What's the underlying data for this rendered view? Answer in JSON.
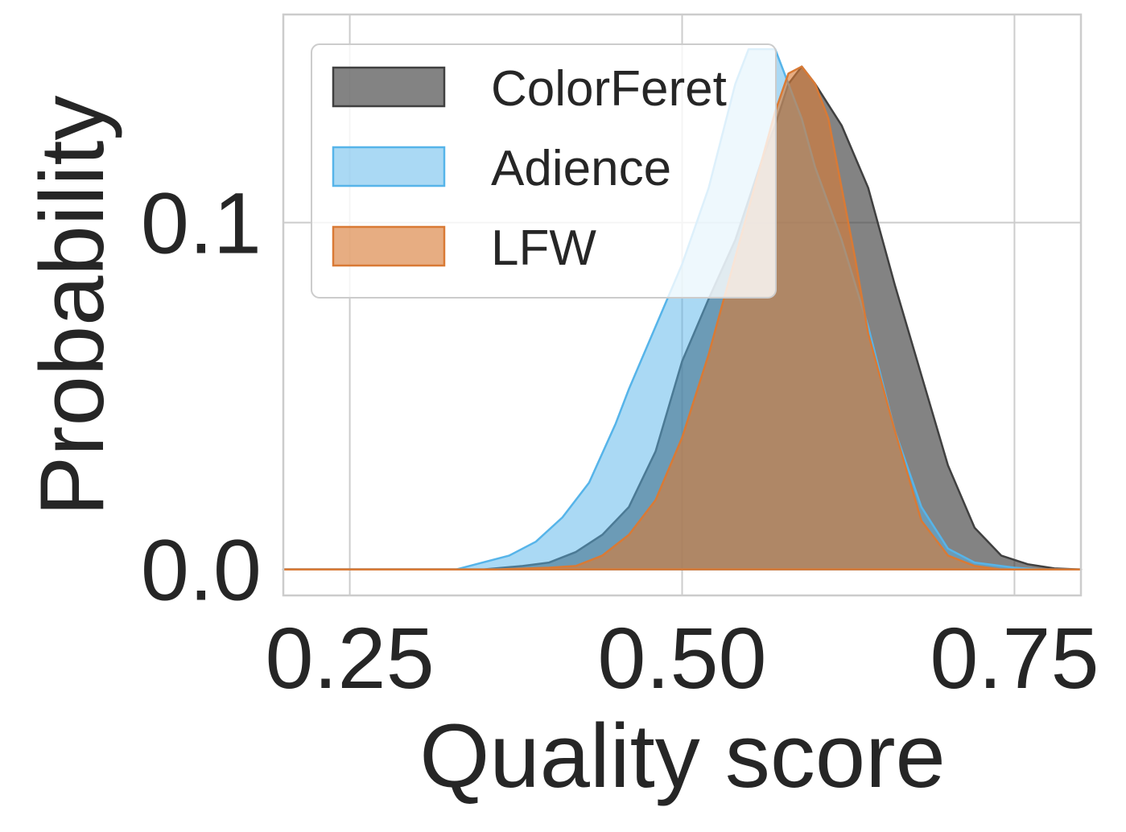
{
  "chart_data": {
    "type": "area",
    "title": "",
    "xlabel": "Quality score",
    "ylabel": "Probability",
    "xlim": [
      0.2,
      0.8
    ],
    "ylim": [
      -0.0075,
      0.16
    ],
    "x_ticks": [
      0.25,
      0.5,
      0.75
    ],
    "x_tick_labels": [
      "0.25",
      "0.50",
      "0.75"
    ],
    "y_ticks": [
      0.0,
      0.1
    ],
    "y_tick_labels": [
      "0.0",
      "0.1"
    ],
    "grid": true,
    "legend_position": "top-left",
    "series": [
      {
        "name": "ColorFeret",
        "color": "#404040",
        "fill_opacity": 0.65,
        "points": [
          [
            0.2,
            0
          ],
          [
            0.35,
            0
          ],
          [
            0.38,
            0.001
          ],
          [
            0.4,
            0.002
          ],
          [
            0.42,
            0.005
          ],
          [
            0.44,
            0.01
          ],
          [
            0.46,
            0.018
          ],
          [
            0.48,
            0.034
          ],
          [
            0.5,
            0.06
          ],
          [
            0.52,
            0.078
          ],
          [
            0.54,
            0.095
          ],
          [
            0.56,
            0.118
          ],
          [
            0.57,
            0.128
          ],
          [
            0.58,
            0.14
          ],
          [
            0.59,
            0.145
          ],
          [
            0.6,
            0.14
          ],
          [
            0.62,
            0.128
          ],
          [
            0.64,
            0.11
          ],
          [
            0.66,
            0.082
          ],
          [
            0.68,
            0.056
          ],
          [
            0.7,
            0.03
          ],
          [
            0.72,
            0.012
          ],
          [
            0.74,
            0.004
          ],
          [
            0.76,
            0.0015
          ],
          [
            0.78,
            0.0003
          ],
          [
            0.8,
            0
          ]
        ]
      },
      {
        "name": "Adience",
        "color": "#56b4e9",
        "fill_opacity": 0.5,
        "points": [
          [
            0.2,
            0
          ],
          [
            0.33,
            0
          ],
          [
            0.35,
            0.002
          ],
          [
            0.37,
            0.004
          ],
          [
            0.39,
            0.008
          ],
          [
            0.41,
            0.015
          ],
          [
            0.43,
            0.025
          ],
          [
            0.45,
            0.042
          ],
          [
            0.46,
            0.052
          ],
          [
            0.48,
            0.07
          ],
          [
            0.5,
            0.088
          ],
          [
            0.52,
            0.11
          ],
          [
            0.53,
            0.125
          ],
          [
            0.54,
            0.14
          ],
          [
            0.55,
            0.15
          ],
          [
            0.56,
            0.15
          ],
          [
            0.57,
            0.15
          ],
          [
            0.58,
            0.14
          ],
          [
            0.59,
            0.13
          ],
          [
            0.6,
            0.116
          ],
          [
            0.62,
            0.095
          ],
          [
            0.64,
            0.07
          ],
          [
            0.66,
            0.04
          ],
          [
            0.68,
            0.018
          ],
          [
            0.7,
            0.006
          ],
          [
            0.72,
            0.002
          ],
          [
            0.75,
            0.0005
          ],
          [
            0.77,
            0
          ],
          [
            0.8,
            0
          ]
        ]
      },
      {
        "name": "LFW",
        "color": "#d97a35",
        "fill_opacity": 0.62,
        "points": [
          [
            0.2,
            0
          ],
          [
            0.3,
            0
          ],
          [
            0.36,
            0
          ],
          [
            0.4,
            0.0005
          ],
          [
            0.42,
            0.001
          ],
          [
            0.44,
            0.004
          ],
          [
            0.46,
            0.01
          ],
          [
            0.48,
            0.02
          ],
          [
            0.5,
            0.038
          ],
          [
            0.51,
            0.05
          ],
          [
            0.52,
            0.062
          ],
          [
            0.54,
            0.09
          ],
          [
            0.56,
            0.118
          ],
          [
            0.57,
            0.132
          ],
          [
            0.58,
            0.143
          ],
          [
            0.59,
            0.145
          ],
          [
            0.6,
            0.14
          ],
          [
            0.61,
            0.13
          ],
          [
            0.62,
            0.11
          ],
          [
            0.63,
            0.09
          ],
          [
            0.64,
            0.068
          ],
          [
            0.66,
            0.04
          ],
          [
            0.68,
            0.014
          ],
          [
            0.7,
            0.004
          ],
          [
            0.72,
            0.001
          ],
          [
            0.74,
            0
          ],
          [
            0.8,
            0
          ]
        ]
      }
    ]
  }
}
